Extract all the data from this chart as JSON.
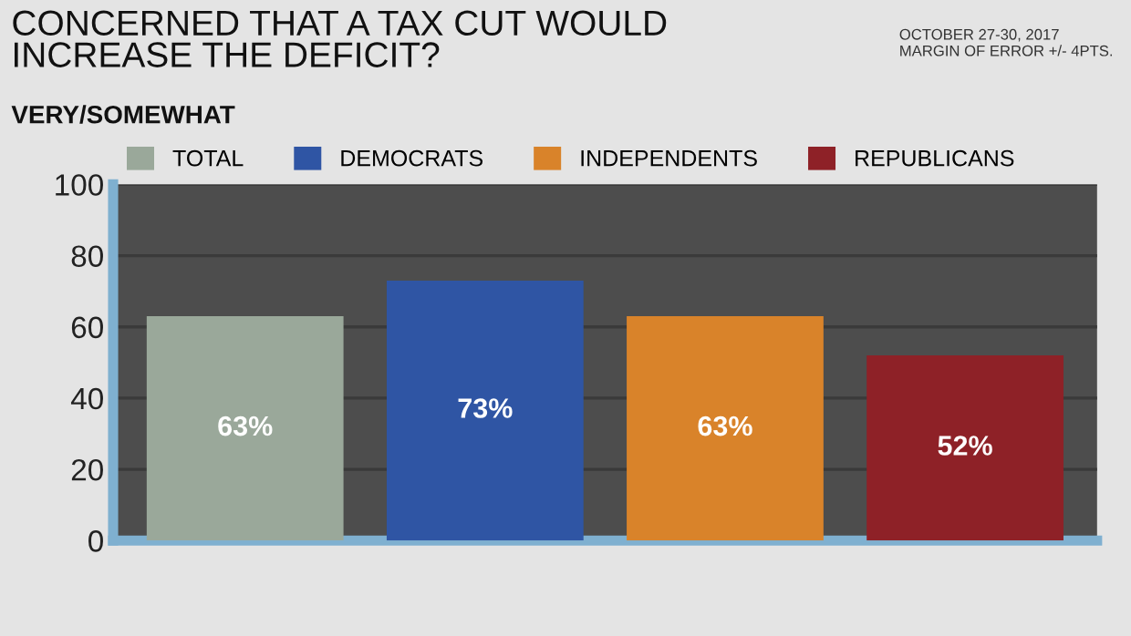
{
  "chart_data": {
    "type": "bar",
    "title": "CONCERNED THAT A TAX CUT WOULD\nINCREASE THE DEFICIT?",
    "subtitle": "VERY/SOMEWHAT",
    "annotations": [
      "OCTOBER 27-30, 2017\nMARGIN OF ERROR +/- 4PTS."
    ],
    "categories": [
      null,
      null,
      null,
      null
    ],
    "series": [
      {
        "name": "TOTAL",
        "color": "#9aa89a",
        "values": [
          63,
          null,
          null,
          null
        ],
        "value_labels": [
          "63%",
          null,
          null,
          null
        ]
      },
      {
        "name": "DEMOCRATS",
        "color": "#2f55a4",
        "values": [
          null,
          73,
          null,
          null
        ],
        "value_labels": [
          null,
          "73%",
          null,
          null
        ]
      },
      {
        "name": "INDEPENDENTS",
        "color": "#d9832a",
        "values": [
          null,
          null,
          63,
          null
        ],
        "value_labels": [
          null,
          null,
          "63%",
          null
        ]
      },
      {
        "name": "REPUBLICANS",
        "color": "#8e2127",
        "values": [
          null,
          null,
          null,
          52
        ],
        "value_labels": [
          null,
          null,
          null,
          "52%"
        ]
      }
    ],
    "ylim": [
      0,
      100
    ],
    "yticks": [
      0,
      20,
      40,
      60,
      80,
      100
    ],
    "grid": "y",
    "legend": "top"
  }
}
